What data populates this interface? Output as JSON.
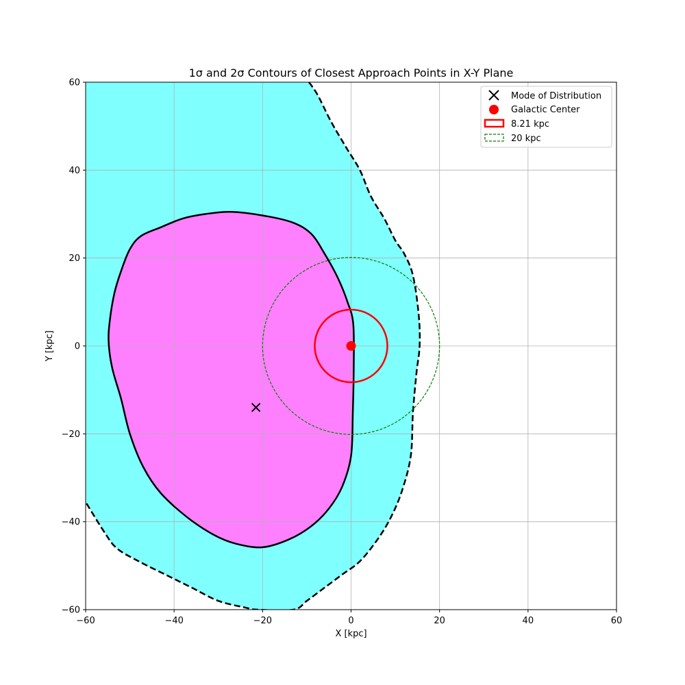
{
  "chart_data": {
    "type": "contour",
    "title": "1σ and 2σ Contours of Closest Approach Points in X-Y Plane",
    "xlabel": "X [kpc]",
    "ylabel": "Y [kpc]",
    "xlim": [
      -60,
      60
    ],
    "ylim": [
      -60,
      60
    ],
    "xticks": [
      -60,
      -40,
      -20,
      0,
      20,
      40,
      60
    ],
    "yticks": [
      -60,
      -40,
      -20,
      0,
      20,
      40,
      60
    ],
    "grid": true,
    "legend_position": "top-right",
    "colors": {
      "sigma1_fill": "#ff80ff",
      "sigma2_fill": "#80ffff",
      "contour_line": "#000000",
      "circle_8": "#ff0000",
      "circle_20": "#008000",
      "galactic_center": "#ff0000",
      "mode_marker": "#000000"
    },
    "sigma2_contour": [
      [
        -60,
        60
      ],
      [
        -9.5,
        60
      ],
      [
        -7.5,
        57
      ],
      [
        -4.5,
        51
      ],
      [
        -1,
        45
      ],
      [
        2,
        40
      ],
      [
        4.5,
        34
      ],
      [
        7.5,
        29
      ],
      [
        10,
        24
      ],
      [
        12,
        21
      ],
      [
        14,
        16
      ],
      [
        15.3,
        7
      ],
      [
        15.5,
        0
      ],
      [
        14.8,
        -6
      ],
      [
        14,
        -15
      ],
      [
        13.5,
        -25
      ],
      [
        11.5,
        -33
      ],
      [
        9,
        -39
      ],
      [
        6,
        -44
      ],
      [
        2,
        -49
      ],
      [
        -2,
        -52
      ],
      [
        -6,
        -55
      ],
      [
        -10,
        -58
      ],
      [
        -13,
        -60
      ],
      [
        -21,
        -60
      ],
      [
        -24,
        -59.5
      ],
      [
        -30,
        -58
      ],
      [
        -36,
        -55
      ],
      [
        -42,
        -52
      ],
      [
        -48,
        -49
      ],
      [
        -53,
        -46
      ],
      [
        -56,
        -42
      ],
      [
        -60,
        -35.5
      ]
    ],
    "sigma1_contour": [
      [
        -27,
        30.5
      ],
      [
        -19,
        29.5
      ],
      [
        -13,
        28
      ],
      [
        -9,
        25.5
      ],
      [
        -6,
        21
      ],
      [
        -3,
        15.5
      ],
      [
        -0.8,
        10
      ],
      [
        0.5,
        5
      ],
      [
        0.6,
        -5
      ],
      [
        0.4,
        -15
      ],
      [
        0,
        -25
      ],
      [
        -2,
        -32
      ],
      [
        -5,
        -37
      ],
      [
        -9,
        -41
      ],
      [
        -14,
        -44
      ],
      [
        -20,
        -45.8
      ],
      [
        -26,
        -45
      ],
      [
        -31,
        -43
      ],
      [
        -37,
        -39
      ],
      [
        -43,
        -33.5
      ],
      [
        -47,
        -27.5
      ],
      [
        -50,
        -20
      ],
      [
        -52,
        -12
      ],
      [
        -54,
        -5
      ],
      [
        -54.8,
        1
      ],
      [
        -54.5,
        6
      ],
      [
        -53.5,
        12
      ],
      [
        -52,
        17
      ],
      [
        -50,
        22
      ],
      [
        -47.5,
        25
      ],
      [
        -43,
        27
      ],
      [
        -38,
        29
      ],
      [
        -33,
        30
      ]
    ],
    "mode": {
      "x": -21.5,
      "y": -14
    },
    "galactic_center": {
      "x": 0,
      "y": 0
    },
    "circles": [
      {
        "label": "8.21 kpc",
        "radius": 8.21
      },
      {
        "label": "20 kpc",
        "radius": 20
      }
    ],
    "legend": [
      "Mode of Distribution",
      "Galactic Center",
      "8.21 kpc",
      "20 kpc"
    ]
  }
}
